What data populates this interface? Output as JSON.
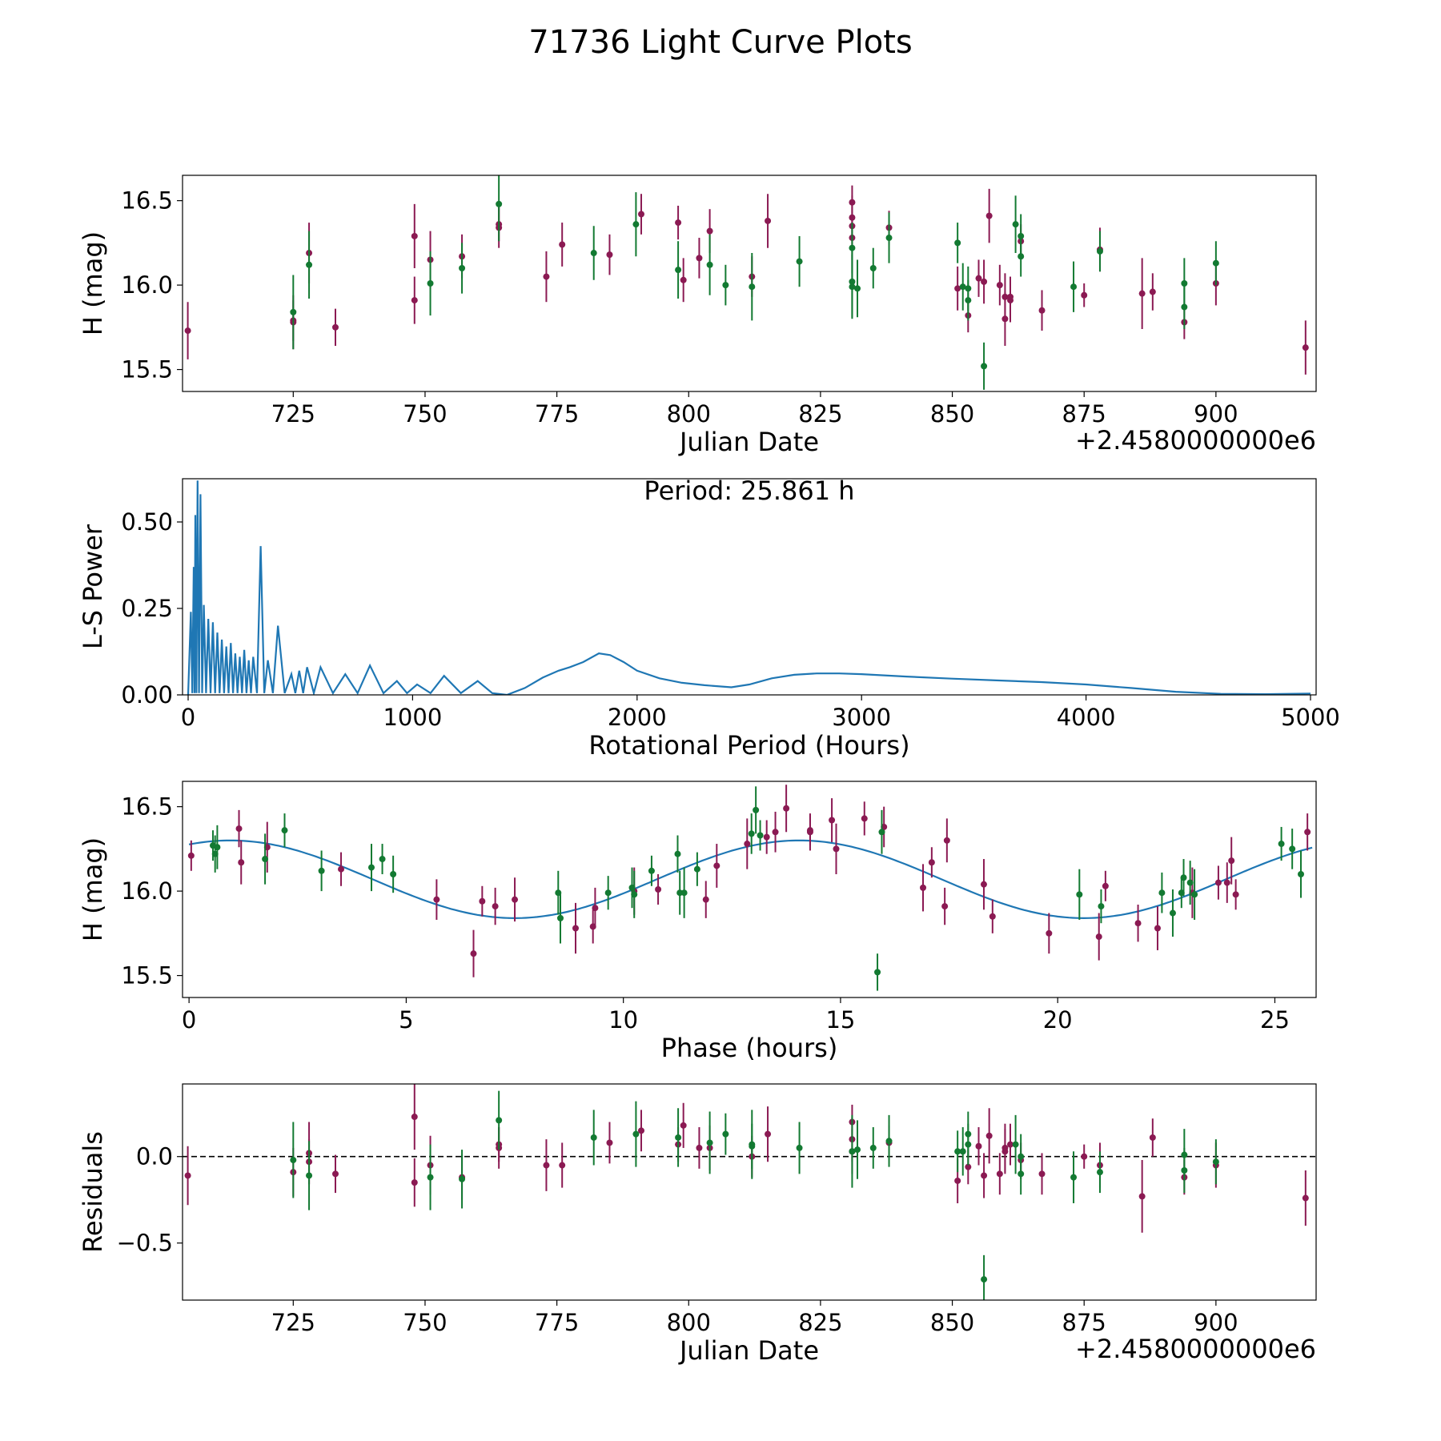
{
  "figure_title": "71736 Light Curve Plots",
  "colors": {
    "band_a": "#8b1a53",
    "band_b": "#137a32",
    "model": "#1f77b4",
    "zero_line": "#000000"
  },
  "chart_data": [
    {
      "type": "scatter",
      "name": "light-curve",
      "xlabel": "Julian Date",
      "ylabel": "H (mag)",
      "x_offset_label": "+2.4580000000e6",
      "xlim": [
        704,
        919
      ],
      "ylim": [
        15.37,
        16.65
      ],
      "xticks": [
        725,
        750,
        775,
        800,
        825,
        850,
        875,
        900
      ],
      "yticks": [
        15.5,
        16.0,
        16.5
      ],
      "ytick_labels": [
        "15.5",
        "16.0",
        "16.5"
      ],
      "series": [
        {
          "name": "band-a",
          "color_key": "band_a",
          "x": [
            705,
            725,
            725,
            728,
            733,
            748,
            748,
            751,
            757,
            764,
            764,
            773,
            776,
            785,
            791,
            798,
            799,
            802,
            804,
            812,
            815,
            831,
            831,
            831,
            831,
            838,
            851,
            853,
            855,
            856,
            857,
            859,
            860,
            860,
            861,
            861,
            863,
            867,
            875,
            878,
            886,
            888,
            894,
            900,
            917
          ],
          "y": [
            15.73,
            15.78,
            15.79,
            16.19,
            15.75,
            16.29,
            15.91,
            16.15,
            16.17,
            16.36,
            16.34,
            16.05,
            16.24,
            16.18,
            16.42,
            16.37,
            16.03,
            16.16,
            16.32,
            16.05,
            16.38,
            16.49,
            16.4,
            16.35,
            16.28,
            16.34,
            15.98,
            15.82,
            16.04,
            16.02,
            16.41,
            16.0,
            15.93,
            15.8,
            15.91,
            15.93,
            16.26,
            15.85,
            15.94,
            16.21,
            15.95,
            15.96,
            15.78,
            16.01,
            15.63
          ],
          "err": [
            0.17,
            0.16,
            0.12,
            0.18,
            0.11,
            0.19,
            0.14,
            0.17,
            0.13,
            0.1,
            0.12,
            0.15,
            0.13,
            0.12,
            0.12,
            0.1,
            0.13,
            0.12,
            0.13,
            0.12,
            0.16,
            0.1,
            0.13,
            0.14,
            0.13,
            0.1,
            0.13,
            0.1,
            0.11,
            0.13,
            0.16,
            0.12,
            0.14,
            0.16,
            0.13,
            0.12,
            0.1,
            0.12,
            0.07,
            0.13,
            0.21,
            0.11,
            0.1,
            0.13,
            0.16
          ]
        },
        {
          "name": "band-b",
          "color_key": "band_b",
          "x": [
            725,
            728,
            751,
            757,
            764,
            782,
            790,
            798,
            804,
            807,
            812,
            821,
            831,
            831,
            831,
            832,
            835,
            838,
            851,
            852,
            853,
            853,
            856,
            862,
            863,
            863,
            873,
            878,
            894,
            894,
            900
          ],
          "y": [
            15.84,
            16.12,
            16.01,
            16.1,
            16.48,
            16.19,
            16.36,
            16.09,
            16.12,
            16.0,
            15.99,
            16.14,
            16.22,
            16.02,
            15.99,
            15.98,
            16.1,
            16.28,
            16.25,
            15.99,
            15.98,
            15.91,
            15.52,
            16.36,
            16.29,
            16.17,
            15.99,
            16.2,
            16.01,
            15.87,
            16.13
          ],
          "err": [
            0.22,
            0.2,
            0.19,
            0.15,
            0.22,
            0.16,
            0.19,
            0.17,
            0.18,
            0.12,
            0.2,
            0.15,
            0.15,
            0.21,
            0.19,
            0.17,
            0.12,
            0.15,
            0.12,
            0.14,
            0.13,
            0.12,
            0.14,
            0.17,
            0.13,
            0.12,
            0.15,
            0.12,
            0.15,
            0.13,
            0.13
          ]
        }
      ]
    },
    {
      "type": "line",
      "name": "periodogram",
      "xlabel": "Rotational Period (Hours)",
      "ylabel": "L-S Power",
      "annotation": "Period: 25.861 h",
      "xlim": [
        -25,
        5025
      ],
      "ylim": [
        0,
        0.625
      ],
      "xticks": [
        0,
        1000,
        2000,
        3000,
        4000,
        5000
      ],
      "yticks": [
        0,
        0.25,
        0.5
      ],
      "ytick_labels": [
        "0.00",
        "0.25",
        "0.50"
      ],
      "peaks": [
        [
          12,
          0.24
        ],
        [
          25,
          0.37
        ],
        [
          32,
          0.52
        ],
        [
          42,
          0.62
        ],
        [
          55,
          0.58
        ],
        [
          70,
          0.26
        ],
        [
          90,
          0.22
        ],
        [
          110,
          0.21
        ],
        [
          130,
          0.18
        ],
        [
          150,
          0.16
        ],
        [
          170,
          0.14
        ],
        [
          190,
          0.15
        ],
        [
          210,
          0.12
        ],
        [
          230,
          0.11
        ],
        [
          250,
          0.13
        ],
        [
          270,
          0.1
        ],
        [
          290,
          0.11
        ],
        [
          323,
          0.43
        ],
        [
          355,
          0.1
        ],
        [
          400,
          0.2
        ],
        [
          460,
          0.06
        ],
        [
          495,
          0.07
        ],
        [
          530,
          0.08
        ],
        [
          590,
          0.08
        ],
        [
          700,
          0.06
        ],
        [
          810,
          0.085
        ],
        [
          930,
          0.04
        ],
        [
          1020,
          0.03
        ],
        [
          1140,
          0.055
        ],
        [
          1290,
          0.04
        ]
      ],
      "envelope_x": [
        1420,
        1500,
        1580,
        1650,
        1700,
        1760,
        1830,
        1880,
        1940,
        2000,
        2100,
        2200,
        2300,
        2420,
        2500,
        2600,
        2700,
        2800,
        2900,
        3000,
        3200,
        3400,
        3600,
        3800,
        4000,
        4200,
        4400,
        4600,
        4800,
        5000
      ],
      "envelope_y": [
        0.0,
        0.02,
        0.05,
        0.07,
        0.08,
        0.095,
        0.12,
        0.115,
        0.095,
        0.07,
        0.048,
        0.035,
        0.028,
        0.022,
        0.03,
        0.048,
        0.058,
        0.062,
        0.062,
        0.06,
        0.053,
        0.047,
        0.042,
        0.037,
        0.03,
        0.02,
        0.009,
        0.003,
        0.002,
        0.004
      ]
    },
    {
      "type": "scatter",
      "name": "phased-curve",
      "xlabel": "Phase (hours)",
      "ylabel": "H (mag)",
      "xlim": [
        -0.15,
        25.95
      ],
      "ylim": [
        15.37,
        16.65
      ],
      "xticks": [
        0,
        5,
        10,
        15,
        20,
        25
      ],
      "yticks": [
        15.5,
        16.0,
        16.5
      ],
      "ytick_labels": [
        "15.5",
        "16.0",
        "16.5"
      ],
      "model": {
        "mean": 16.07,
        "amplitude": 0.23,
        "period": 13.1,
        "peak_phase": 0.95
      },
      "series": [
        {
          "name": "band-a",
          "color_key": "band_a",
          "x": [
            0.05,
            1.15,
            1.2,
            1.8,
            3.5,
            5.7,
            6.55,
            6.75,
            7.05,
            7.5,
            8.9,
            9.3,
            9.35,
            10.25,
            10.8,
            11.9,
            12.15,
            12.85,
            13.3,
            13.5,
            13.75,
            14.3,
            14.3,
            14.8,
            14.9,
            15.55,
            16.0,
            16.9,
            17.1,
            17.4,
            17.45,
            18.3,
            18.5,
            19.8,
            20.95,
            21.1,
            21.85,
            22.3,
            23.1,
            23.7,
            23.9,
            24.0,
            24.1,
            25.75
          ],
          "y": [
            16.21,
            16.37,
            16.17,
            16.26,
            16.13,
            15.95,
            15.63,
            15.94,
            15.91,
            15.95,
            15.78,
            15.79,
            15.9,
            16.0,
            16.01,
            15.95,
            16.15,
            16.28,
            16.32,
            16.35,
            16.49,
            16.36,
            16.35,
            16.42,
            16.25,
            16.43,
            16.38,
            16.02,
            16.17,
            15.91,
            16.3,
            16.04,
            15.85,
            15.75,
            15.73,
            16.03,
            15.81,
            15.78,
            15.99,
            16.05,
            16.05,
            16.18,
            15.98,
            16.35
          ]
        },
        {
          "name": "band-b",
          "color_key": "band_b",
          "x": [
            0.55,
            0.6,
            0.65,
            1.75,
            2.2,
            3.05,
            4.2,
            4.45,
            4.7,
            8.5,
            8.55,
            9.65,
            10.2,
            10.25,
            10.65,
            11.25,
            11.3,
            11.4,
            11.7,
            12.95,
            13.05,
            13.15,
            15.85,
            15.95,
            20.5,
            21.0,
            22.4,
            22.65,
            22.85,
            22.9,
            23.05,
            23.15,
            25.15,
            25.4,
            25.6
          ],
          "y": [
            16.27,
            16.22,
            16.26,
            16.19,
            16.36,
            16.12,
            16.14,
            16.19,
            16.1,
            15.99,
            15.84,
            15.99,
            16.02,
            15.98,
            16.12,
            16.22,
            15.99,
            15.99,
            16.13,
            16.34,
            16.48,
            16.33,
            15.52,
            16.35,
            15.98,
            15.91,
            15.99,
            15.87,
            15.99,
            16.08,
            16.05,
            15.98,
            16.28,
            16.25,
            16.1
          ]
        }
      ]
    },
    {
      "type": "scatter",
      "name": "residuals",
      "xlabel": "Julian Date",
      "ylabel": "Residuals",
      "x_offset_label": "+2.4580000000e6",
      "xlim": [
        704,
        919
      ],
      "ylim": [
        -0.83,
        0.42
      ],
      "xticks": [
        725,
        750,
        775,
        800,
        825,
        850,
        875,
        900
      ],
      "yticks": [
        -0.5,
        0.0
      ],
      "ytick_labels": [
        "−0.5",
        "0.0"
      ],
      "zero_line": 0,
      "series": [
        {
          "name": "band-a",
          "color_key": "band_a",
          "x": [
            705,
            725,
            728,
            728,
            733,
            748,
            748,
            751,
            757,
            764,
            764,
            773,
            776,
            785,
            791,
            798,
            799,
            802,
            804,
            812,
            815,
            831,
            831,
            831,
            838,
            851,
            853,
            855,
            856,
            857,
            859,
            860,
            860,
            861,
            863,
            867,
            875,
            878,
            886,
            888,
            894,
            900,
            917
          ],
          "y": [
            -0.11,
            -0.09,
            -0.03,
            0.02,
            -0.1,
            0.23,
            -0.15,
            -0.05,
            -0.12,
            0.07,
            0.05,
            -0.05,
            -0.05,
            0.08,
            0.15,
            0.07,
            0.18,
            0.05,
            0.05,
            0.0,
            0.13,
            0.2,
            0.1,
            0.03,
            0.08,
            -0.14,
            -0.06,
            0.06,
            -0.11,
            0.12,
            -0.1,
            0.05,
            0.03,
            0.07,
            -0.02,
            -0.1,
            0.0,
            -0.05,
            -0.23,
            0.11,
            -0.12,
            -0.05,
            -0.24
          ],
          "err": [
            0.17,
            0.14,
            0.13,
            0.18,
            0.11,
            0.19,
            0.14,
            0.17,
            0.13,
            0.1,
            0.12,
            0.15,
            0.13,
            0.12,
            0.12,
            0.1,
            0.13,
            0.12,
            0.13,
            0.12,
            0.16,
            0.1,
            0.13,
            0.13,
            0.1,
            0.13,
            0.1,
            0.11,
            0.13,
            0.16,
            0.12,
            0.14,
            0.13,
            0.12,
            0.1,
            0.12,
            0.07,
            0.13,
            0.21,
            0.11,
            0.1,
            0.13,
            0.16
          ]
        },
        {
          "name": "band-b",
          "color_key": "band_b",
          "x": [
            725,
            728,
            751,
            757,
            764,
            782,
            790,
            798,
            804,
            807,
            812,
            812,
            821,
            831,
            832,
            835,
            838,
            851,
            852,
            853,
            853,
            856,
            862,
            863,
            863,
            873,
            878,
            894,
            894,
            900
          ],
          "y": [
            -0.02,
            -0.11,
            -0.12,
            -0.13,
            0.21,
            0.11,
            0.13,
            0.11,
            0.08,
            0.13,
            0.07,
            0.06,
            0.05,
            0.03,
            0.04,
            0.05,
            0.09,
            0.03,
            0.03,
            0.13,
            0.07,
            -0.71,
            0.07,
            0.0,
            -0.1,
            -0.12,
            -0.09,
            0.01,
            -0.08,
            -0.03
          ],
          "err": [
            0.22,
            0.2,
            0.19,
            0.17,
            0.17,
            0.16,
            0.19,
            0.17,
            0.18,
            0.12,
            0.2,
            0.13,
            0.15,
            0.21,
            0.17,
            0.12,
            0.15,
            0.12,
            0.14,
            0.13,
            0.12,
            0.14,
            0.17,
            0.13,
            0.12,
            0.15,
            0.12,
            0.15,
            0.13,
            0.13
          ]
        }
      ]
    }
  ]
}
